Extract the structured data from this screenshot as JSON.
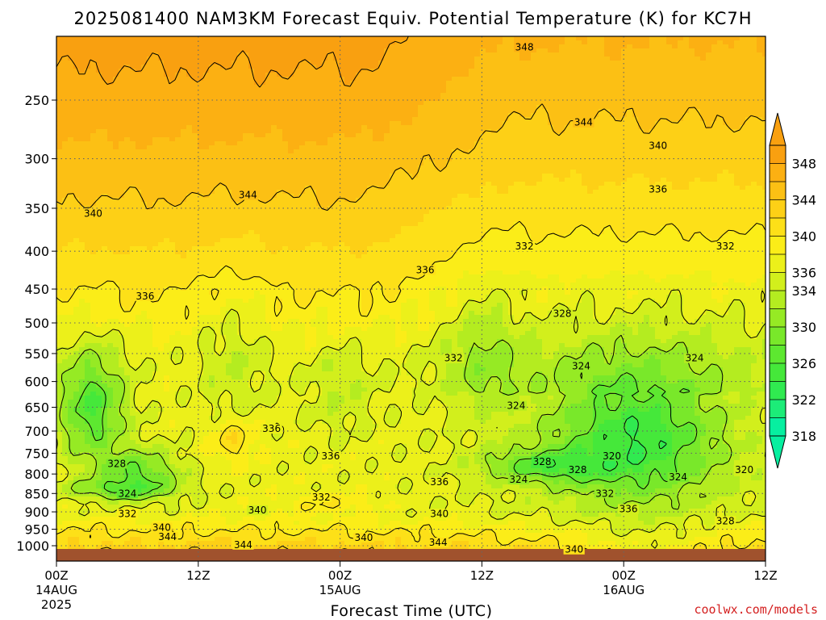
{
  "chart_data": {
    "type": "heatmap",
    "title": "2025081400 NAM3KM Forecast Equiv. Potential Temperature (K) for KC7H",
    "xlabel": "Forecast Time (UTC)",
    "ylabel": "",
    "x_ticks": [
      {
        "hour": 0,
        "label": "00Z",
        "date": "14AUG",
        "year": "2025"
      },
      {
        "hour": 12,
        "label": "12Z",
        "date": "",
        "year": ""
      },
      {
        "hour": 24,
        "label": "00Z",
        "date": "15AUG",
        "year": ""
      },
      {
        "hour": 36,
        "label": "12Z",
        "date": "",
        "year": ""
      },
      {
        "hour": 48,
        "label": "00Z",
        "date": "16AUG",
        "year": ""
      },
      {
        "hour": 60,
        "label": "12Z",
        "date": "",
        "year": ""
      }
    ],
    "xlim": [
      0,
      60
    ],
    "y_ticks": [
      250,
      300,
      350,
      400,
      450,
      500,
      550,
      600,
      650,
      700,
      750,
      800,
      850,
      900,
      950,
      1000
    ],
    "ylim": [
      200,
      1030
    ],
    "y_scale": "log-pressure",
    "surface_pressure_hpa": 1010,
    "grid": true,
    "colorbar": {
      "levels": [
        318,
        320,
        322,
        324,
        326,
        328,
        330,
        332,
        334,
        336,
        338,
        340,
        342,
        344,
        346,
        348,
        350
      ],
      "tick_labels": [
        318,
        322,
        326,
        330,
        334,
        336,
        340,
        344,
        348
      ],
      "colors": [
        "#07efa0",
        "#1cec78",
        "#30ea50",
        "#45e83a",
        "#5de830",
        "#79e82a",
        "#96ea24",
        "#b4ec20",
        "#d2ef1c",
        "#ecf01a",
        "#fbed18",
        "#fde018",
        "#fdd016",
        "#fcc014",
        "#fcb012",
        "#f9a010"
      ],
      "extend": "both",
      "position": "right"
    },
    "contours": {
      "interval": 4,
      "labeled_values": [
        {
          "value": "348",
          "time_h": 39.6,
          "pressure": 212
        },
        {
          "value": "344",
          "time_h": 44.6,
          "pressure": 268
        },
        {
          "value": "340",
          "time_h": 50.9,
          "pressure": 288
        },
        {
          "value": "336",
          "time_h": 50.9,
          "pressure": 330
        },
        {
          "value": "344",
          "time_h": 16.2,
          "pressure": 336
        },
        {
          "value": "340",
          "time_h": 3.1,
          "pressure": 356
        },
        {
          "value": "332",
          "time_h": 39.6,
          "pressure": 394
        },
        {
          "value": "332",
          "time_h": 56.6,
          "pressure": 394
        },
        {
          "value": "336",
          "time_h": 7.5,
          "pressure": 460
        },
        {
          "value": "336",
          "time_h": 31.2,
          "pressure": 424
        },
        {
          "value": "328",
          "time_h": 42.8,
          "pressure": 486
        },
        {
          "value": "332",
          "time_h": 33.6,
          "pressure": 558
        },
        {
          "value": "324",
          "time_h": 44.4,
          "pressure": 572
        },
        {
          "value": "324",
          "time_h": 54.0,
          "pressure": 558
        },
        {
          "value": "324",
          "time_h": 38.9,
          "pressure": 647
        },
        {
          "value": "336",
          "time_h": 18.2,
          "pressure": 695
        },
        {
          "value": "336",
          "time_h": 23.2,
          "pressure": 757
        },
        {
          "value": "320",
          "time_h": 47.0,
          "pressure": 757
        },
        {
          "value": "328",
          "time_h": 5.1,
          "pressure": 775
        },
        {
          "value": "328",
          "time_h": 41.1,
          "pressure": 770
        },
        {
          "value": "328",
          "time_h": 44.1,
          "pressure": 790
        },
        {
          "value": "320",
          "time_h": 58.2,
          "pressure": 790
        },
        {
          "value": "324",
          "time_h": 39.1,
          "pressure": 814
        },
        {
          "value": "336",
          "time_h": 32.4,
          "pressure": 820
        },
        {
          "value": "324",
          "time_h": 52.6,
          "pressure": 808
        },
        {
          "value": "324",
          "time_h": 6.0,
          "pressure": 850
        },
        {
          "value": "332",
          "time_h": 22.4,
          "pressure": 860
        },
        {
          "value": "332",
          "time_h": 46.4,
          "pressure": 850
        },
        {
          "value": "340",
          "time_h": 17.0,
          "pressure": 895
        },
        {
          "value": "336",
          "time_h": 48.4,
          "pressure": 892
        },
        {
          "value": "332",
          "time_h": 6.0,
          "pressure": 905
        },
        {
          "value": "340",
          "time_h": 32.4,
          "pressure": 905
        },
        {
          "value": "328",
          "time_h": 56.6,
          "pressure": 926
        },
        {
          "value": "340",
          "time_h": 8.9,
          "pressure": 945
        },
        {
          "value": "340",
          "time_h": 26.0,
          "pressure": 975
        },
        {
          "value": "344",
          "time_h": 9.4,
          "pressure": 973
        },
        {
          "value": "344",
          "time_h": 15.8,
          "pressure": 997
        },
        {
          "value": "344",
          "time_h": 32.3,
          "pressure": 990
        },
        {
          "value": "340",
          "time_h": 43.8,
          "pressure": 1012
        }
      ]
    }
  },
  "credit": "coolwx.com/models",
  "colors": {
    "ground": "#a0522d",
    "credit": "#d42020",
    "grid": "#666666"
  }
}
